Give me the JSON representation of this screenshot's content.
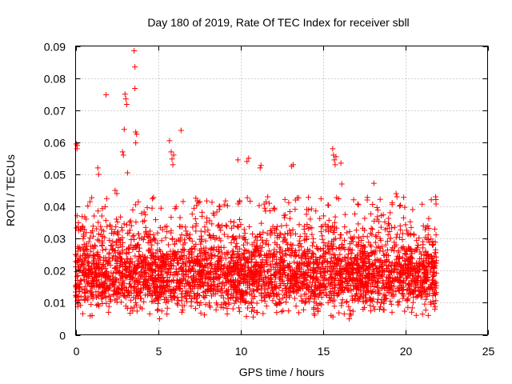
{
  "chart_data": {
    "type": "scatter",
    "title": "Day 180 of 2019, Rate Of TEC Index for receiver sbll",
    "xlabel": "GPS time / hours",
    "ylabel": "ROTI / TECUs",
    "xlim": [
      0,
      25
    ],
    "ylim": [
      0,
      0.09
    ],
    "xticks": [
      0,
      5,
      10,
      15,
      20,
      25
    ],
    "xtick_labels": [
      "0",
      "5",
      "10",
      "15",
      "20",
      "25"
    ],
    "yticks": [
      0,
      0.01,
      0.02,
      0.03,
      0.04,
      0.05,
      0.06,
      0.07,
      0.08,
      0.09
    ],
    "ytick_labels": [
      "0",
      "0.01",
      "0.02",
      "0.03",
      "0.04",
      "0.05",
      "0.06",
      "0.07",
      "0.08",
      "0.09"
    ],
    "grid": true,
    "marker": "+",
    "color": "#ff0000",
    "series": [
      {
        "name": "ROTI",
        "points": [
          [
            0.05,
            0.0595
          ],
          [
            0.08,
            0.058
          ],
          [
            0.1,
            0.059
          ],
          [
            1.35,
            0.052
          ],
          [
            1.4,
            0.05
          ],
          [
            1.85,
            0.0748
          ],
          [
            2.4,
            0.045
          ],
          [
            2.5,
            0.044
          ],
          [
            2.85,
            0.057
          ],
          [
            2.9,
            0.056
          ],
          [
            2.95,
            0.064
          ],
          [
            3.0,
            0.075
          ],
          [
            3.05,
            0.0735
          ],
          [
            3.1,
            0.0718
          ],
          [
            3.15,
            0.0505
          ],
          [
            3.55,
            0.0885
          ],
          [
            3.6,
            0.0835
          ],
          [
            3.6,
            0.0768
          ],
          [
            3.65,
            0.0632
          ],
          [
            3.7,
            0.0625
          ],
          [
            3.65,
            0.0598
          ],
          [
            5.7,
            0.0605
          ],
          [
            5.8,
            0.057
          ],
          [
            5.85,
            0.0548
          ],
          [
            5.9,
            0.053
          ],
          [
            5.95,
            0.056
          ],
          [
            6.4,
            0.0637
          ],
          [
            9.85,
            0.0545
          ],
          [
            10.4,
            0.054
          ],
          [
            10.5,
            0.055
          ],
          [
            11.2,
            0.052
          ],
          [
            11.25,
            0.0528
          ],
          [
            13.1,
            0.0525
          ],
          [
            13.2,
            0.053
          ],
          [
            15.6,
            0.058
          ],
          [
            15.65,
            0.056
          ],
          [
            15.7,
            0.0545
          ],
          [
            15.75,
            0.053
          ],
          [
            15.8,
            0.0555
          ],
          [
            16.1,
            0.0535
          ],
          [
            16.15,
            0.047
          ],
          [
            18.1,
            0.0472
          ],
          [
            19.45,
            0.044
          ],
          [
            19.5,
            0.043
          ],
          [
            21.85,
            0.043
          ],
          [
            1.0,
            0.006
          ],
          [
            2.0,
            0.007
          ],
          [
            4.5,
            0.0065
          ],
          [
            5.1,
            0.005
          ],
          [
            9.2,
            0.0065
          ],
          [
            11.0,
            0.007
          ],
          [
            15.5,
            0.006
          ],
          [
            16.3,
            0.0065
          ],
          [
            16.6,
            0.005
          ],
          [
            19.2,
            0.007
          ],
          [
            21.4,
            0.006
          ],
          [
            21.8,
            0.008
          ]
        ]
      }
    ]
  }
}
